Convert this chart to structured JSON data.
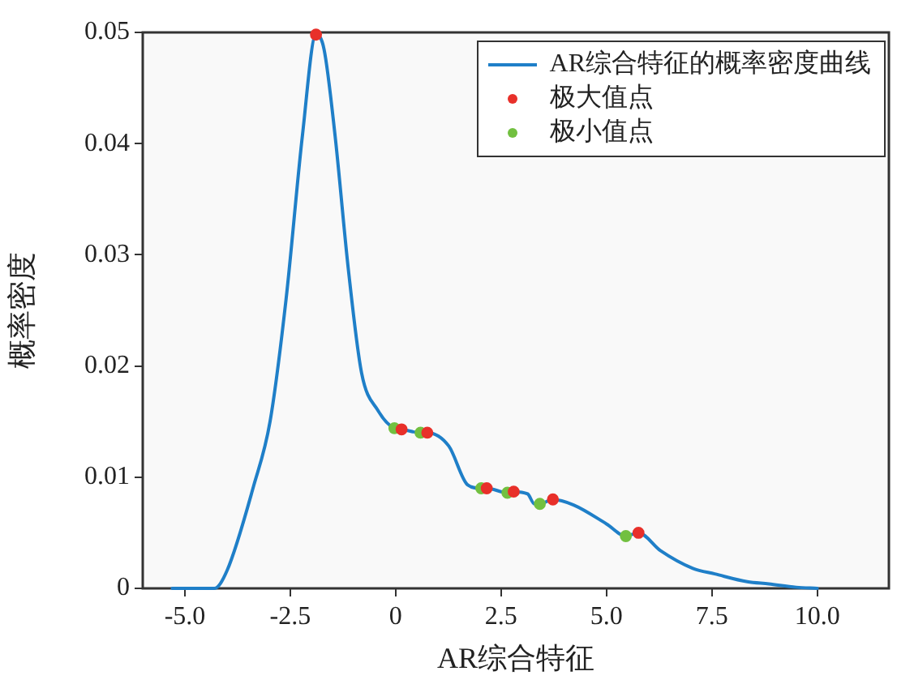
{
  "chart_data": {
    "type": "line",
    "xlabel": "AR综合特征",
    "ylabel": "概率密度",
    "xlim": [
      -6,
      11.7
    ],
    "ylim": [
      0,
      0.05
    ],
    "xticks": [
      {
        "value": -5,
        "label": "-5.0"
      },
      {
        "value": -2.5,
        "label": "-2.5"
      },
      0,
      {
        "value": 2.5,
        "label": "2.5"
      },
      {
        "value": 5,
        "label": "5.0"
      },
      {
        "value": 7.5,
        "label": "7.5"
      },
      {
        "value": 10,
        "label": "10.0"
      }
    ],
    "yticks": [
      0,
      0.01,
      0.02,
      0.03,
      0.04,
      0.05
    ],
    "grid": false,
    "legend": "top right",
    "line_style": "solid",
    "series": [
      {
        "name": "AR综合特征的概率密度曲线",
        "color": "#1f7fc8",
        "marker": "none",
        "x": [
          -5.3,
          -4.3,
          -4.0,
          -3.37,
          -2.98,
          -2.6,
          -2.21,
          -1.89,
          -1.7,
          -1.44,
          -1.12,
          -0.81,
          -0.42,
          -0.03,
          0.14,
          0.59,
          0.75,
          1.26,
          1.71,
          2.03,
          2.16,
          2.65,
          2.8,
          3.13,
          3.29,
          3.42,
          3.73,
          4.22,
          5.0,
          5.46,
          5.76,
          6.28,
          7.05,
          7.57,
          8.34,
          8.85,
          9.5,
          10.0
        ],
        "values": [
          0,
          0,
          0.0016,
          0.0092,
          0.015,
          0.026,
          0.0408,
          0.0498,
          0.0485,
          0.0408,
          0.0286,
          0.0194,
          0.016,
          0.0144,
          0.0143,
          0.014,
          0.014,
          0.0128,
          0.0093,
          0.009,
          0.009,
          0.0086,
          0.0087,
          0.0085,
          0.0076,
          0.0076,
          0.008,
          0.0075,
          0.0058,
          0.0047,
          0.005,
          0.0034,
          0.0018,
          0.0013,
          0.0006,
          0.0004,
          0.0001,
          0
        ]
      },
      {
        "type": "scatter",
        "name": "极大值点",
        "color": "#e8302a",
        "marker": "circle",
        "x": [
          -1.89,
          0.14,
          0.75,
          2.16,
          2.8,
          3.73,
          5.76
        ],
        "values": [
          0.0498,
          0.0143,
          0.014,
          0.009,
          0.0087,
          0.008,
          0.005
        ]
      },
      {
        "type": "scatter",
        "name": "极小值点",
        "color": "#72c040",
        "marker": "circle",
        "x": [
          -0.03,
          0.59,
          2.03,
          2.65,
          3.42,
          5.46
        ],
        "values": [
          0.0144,
          0.014,
          0.009,
          0.0086,
          0.0076,
          0.0047
        ]
      }
    ]
  }
}
